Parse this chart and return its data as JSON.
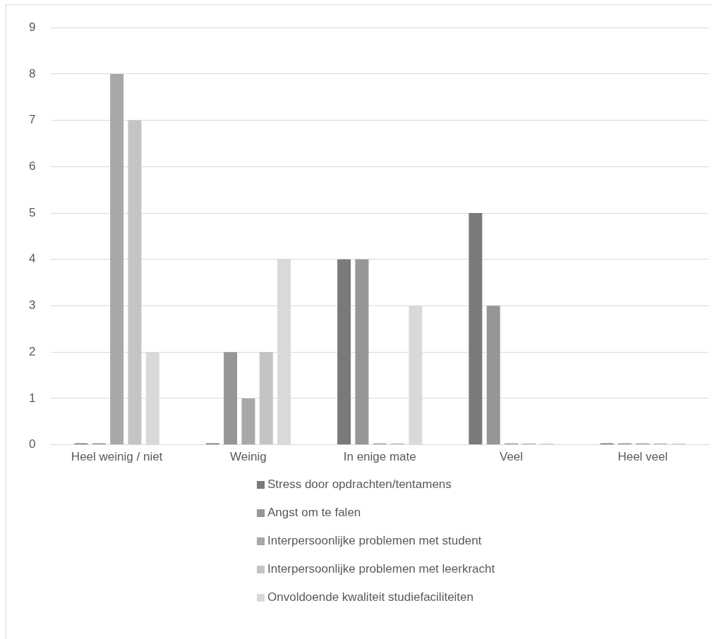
{
  "chart_data": {
    "type": "bar",
    "categories": [
      "Heel weinig / niet",
      "Weinig",
      "In enige mate",
      "Veel",
      "Heel veel"
    ],
    "series": [
      {
        "name": "Stress door opdrachten/tentamens",
        "color": "#7a7a7a",
        "values": [
          0,
          0,
          4,
          5,
          0
        ]
      },
      {
        "name": "Angst om te falen",
        "color": "#969696",
        "values": [
          0,
          2,
          4,
          3,
          0
        ]
      },
      {
        "name": "Interpersoonlijke problemen met student",
        "color": "#a8a8a8",
        "values": [
          8,
          1,
          0,
          0,
          0
        ]
      },
      {
        "name": "Interpersoonlijke problemen met leerkracht",
        "color": "#c4c4c4",
        "values": [
          7,
          2,
          0,
          0,
          0
        ]
      },
      {
        "name": "Onvoldoende kwaliteit studiefaciliteiten",
        "color": "#d9d9d9",
        "values": [
          2,
          4,
          3,
          0,
          0
        ]
      }
    ],
    "ylim": [
      0,
      9
    ],
    "yticks": [
      0,
      1,
      2,
      3,
      4,
      5,
      6,
      7,
      8,
      9
    ],
    "grid": "y",
    "legend": "bottom"
  }
}
